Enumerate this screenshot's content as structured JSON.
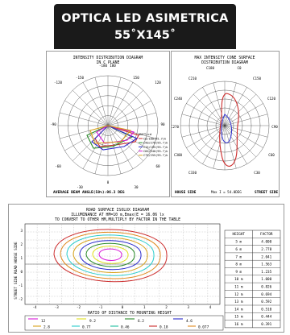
{
  "header": {
    "line1": "OPTICA LED  ASIMETRICA",
    "line2": "55˚X145˚"
  },
  "polar1": {
    "title1": "INTENSITY DISTRIBUTION DIAGRAM",
    "title2": "IN C PLANE",
    "angle_labels": [
      "-180",
      "180",
      "-150",
      "150",
      "-120",
      "120",
      "-90",
      "90",
      "-60",
      "60",
      "-30",
      "30",
      "0"
    ],
    "legend_title": "UNIT=cd",
    "legend": [
      "C0/180(95.7)k",
      "C90/270(95.7)k",
      "C15/195(95.7)k",
      "C60/240(95.7)k",
      "C75/255(95.7)k"
    ],
    "footer": "AVERAGE BEAM ANGLE(50%):96.3 DEG",
    "colors": [
      "#cc2a2a",
      "#2a8a2a",
      "#2a2acc",
      "#d81bd8",
      "#d8a21b"
    ]
  },
  "polar2": {
    "title1": "MAX INTENSITY CONE SURFACE",
    "title2": "DISTRIBUTION DIAGRAM",
    "labels": [
      "C180",
      "C0",
      "C210",
      "C150",
      "C240",
      "C120",
      "C270",
      "C90",
      "C300",
      "C60",
      "C330",
      "C30"
    ],
    "footer_left": "HOUSE SIDE",
    "footer_mid": "Max I = 54.0DEG",
    "footer_right": "STREET SIDE"
  },
  "isolux": {
    "title1": "ROAD SURFACE ISOLUX DIAGRAM",
    "title2": "ILLUMINANCE AT HM=10 m,Emax(E = 16.06 lx",
    "title3": "TO CONVERT TO OTHER HM,MULTIPLY BY FACTOR IN THE TABLE",
    "ylabel": "STREET SIDE  ROAD  HOUSE SIDE",
    "xlabel": "RATIO OF DISTANCE TO MOUNTING HEIGHT",
    "x_ticks": [
      "-4",
      "-3",
      "-2",
      "-1",
      "0",
      "1",
      "2",
      "3",
      "4"
    ],
    "y_ticks": [
      "3",
      "2",
      "1",
      "0",
      "-1",
      "-2"
    ],
    "legend": [
      {
        "label": "12",
        "color": "#d81bd8"
      },
      {
        "label": "9.2",
        "color": "#e0e020"
      },
      {
        "label": "6.2",
        "color": "#2a8a2a"
      },
      {
        "label": "4.6",
        "color": "#2a2acc"
      },
      {
        "label": "2.8",
        "color": "#d8a21b"
      },
      {
        "label": "0.77",
        "color": "#2acccc"
      },
      {
        "label": "0.46",
        "color": "#20c0a0"
      },
      {
        "label": "0.18",
        "color": "#cc2a2a"
      },
      {
        "label": "0.077",
        "color": "#e08a20"
      }
    ],
    "table_headers": [
      "HEIGHT",
      "FACTOR"
    ],
    "table_rows": [
      [
        "5 m",
        "4.000"
      ],
      [
        "6 m",
        "2.778"
      ],
      [
        "7 m",
        "2.041"
      ],
      [
        "8 m",
        "1.563"
      ],
      [
        "9 m",
        "1.235"
      ],
      [
        "10 m",
        "1.000"
      ],
      [
        "11 m",
        "0.826"
      ],
      [
        "12 m",
        "0.694"
      ],
      [
        "13 m",
        "0.592"
      ],
      [
        "14 m",
        "0.510"
      ],
      [
        "15 m",
        "0.444"
      ],
      [
        "16 m",
        "0.391"
      ]
    ]
  }
}
